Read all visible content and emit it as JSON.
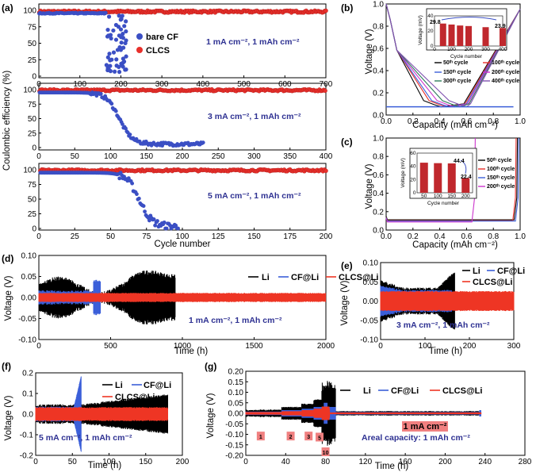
{
  "colors": {
    "bare": "#3b4fc4",
    "clcs": "#e8302b",
    "li": "#000000",
    "cf": "#3b5fd9",
    "clcsli": "#ee3524",
    "cycLine": [
      "#000000",
      "#e8302b",
      "#3b5fd9",
      "#cc33cc"
    ],
    "pink": "#f08080"
  },
  "panels": {
    "a": "(a)",
    "b": "(b)",
    "c": "(c)",
    "d": "(d)",
    "e": "(e)",
    "f": "(f)",
    "g": "(g)"
  },
  "a": {
    "ylabel": "Coulombic efficiency (%)",
    "xlabel": "Cycle number",
    "legend": {
      "bare": "bare CF",
      "clcs": "CLCS"
    },
    "sub": [
      {
        "cond": "1 mA cm⁻², 1 mAh cm⁻²",
        "xlim": [
          0,
          700
        ],
        "xticks": [
          "0",
          "100",
          "200",
          "300",
          "400",
          "500",
          "600",
          "700"
        ],
        "yticks": [
          "0",
          "25",
          "50",
          "75",
          "100"
        ],
        "bare": {
          "stableUntil": 165,
          "failStart": 165,
          "failEnd": 215
        },
        "clcs": {
          "value": 98,
          "end": 700
        }
      },
      {
        "cond": "3 mA cm⁻², 1 mAh cm⁻²",
        "xlim": [
          0,
          400
        ],
        "xticks": [
          "0",
          "50",
          "100",
          "150",
          "200",
          "250",
          "300",
          "350",
          "400"
        ],
        "yticks": [
          "0",
          "25",
          "50",
          "75",
          "100"
        ],
        "bare": {
          "stableUntil": 70,
          "midpoint": 112,
          "end": 230,
          "floor": 6
        },
        "clcs": {
          "value": 99,
          "end": 400
        }
      },
      {
        "cond": "5 mA cm⁻², 1 mAh cm⁻²",
        "xlim": [
          0,
          200
        ],
        "xticks": [
          "0",
          "25",
          "50",
          "75",
          "100",
          "125",
          "150",
          "175",
          "200"
        ],
        "yticks": [
          "0",
          "25",
          "50",
          "75",
          "100"
        ],
        "bare": {
          "stableUntil": 55,
          "midpoint": 70,
          "end": 97
        },
        "clcs": {
          "value": 99,
          "end": 200
        }
      }
    ]
  },
  "b": {
    "xlabel": "Capacity (mAh cm⁻²)",
    "ylabel": "Voltage (V)",
    "xticks": [
      "0.0",
      "0.2",
      "0.4",
      "0.6",
      "0.8",
      "1.0"
    ],
    "yticks": [
      "0.0",
      "0.2",
      "0.4",
      "0.6",
      "0.8",
      "1.0"
    ],
    "legend": [
      "50ᵗʰ cycle",
      "150ᵗʰ cycle",
      "300ᵗʰ cycle",
      "100ᵗʰ cycle",
      "200ᵗʰ cycle",
      "400ᵗʰ cycle"
    ],
    "inset": {
      "ylabel": "Voltage (mV)",
      "xlabel": "Cycle number",
      "xticks": [
        "0",
        "100",
        "200",
        "300",
        "400"
      ],
      "yticks": [
        "0",
        "20",
        "40"
      ],
      "categories": [
        50,
        100,
        150,
        200,
        300,
        400
      ],
      "values": [
        29.8,
        28.5,
        27.2,
        26.5,
        25.0,
        23.9
      ],
      "label_first": "29.8",
      "label_last": "23.9"
    }
  },
  "c": {
    "xlabel": "Capacity (mAh cm⁻²)",
    "ylabel": "Voltage (V)",
    "xticks": [
      "0.0",
      "0.2",
      "0.4",
      "0.6",
      "0.8",
      "1.0"
    ],
    "yticks": [
      "0.0",
      "0.2",
      "0.4",
      "0.6",
      "0.8",
      "1.0"
    ],
    "legend": [
      "50ᵗʰ cycle",
      "100ᵗʰ cycle",
      "150ᵗʰ cycle",
      "200ᵗʰ cycle"
    ],
    "inset": {
      "ylabel": "Voltage (mV)",
      "xlabel": "Cycle number",
      "categories": [
        "50",
        "100",
        "150",
        "200"
      ],
      "yticks": [
        "0",
        "20",
        "40",
        "60"
      ],
      "values": [
        45.5,
        44.8,
        44.4,
        22.4
      ],
      "label_a": "44.4",
      "label_b": "22.4"
    }
  },
  "d": {
    "xlabel": "Time (h)",
    "ylabel": "Voltage (V)",
    "cond": "1 mA cm⁻², 1 mAh cm⁻²",
    "xticks": [
      "0",
      "500",
      "1000",
      "1500",
      "2000"
    ],
    "yticks": [
      "-0.10",
      "-0.05",
      "0.00",
      "0.05",
      "0.10"
    ],
    "legend": [
      "Li",
      "CF@Li",
      "CLCS@Li"
    ]
  },
  "e": {
    "xlabel": "Time (h)",
    "ylabel": "Voltage (V)",
    "cond": "3 mA cm⁻², 1 mAh cm⁻²",
    "xticks": [
      "0",
      "100",
      "200",
      "300"
    ],
    "yticks": [
      "-0.10",
      "-0.05",
      "0.00",
      "0.05",
      "0.10"
    ],
    "legend": [
      "Li",
      "CF@Li",
      "CLCS@Li"
    ]
  },
  "f": {
    "xlabel": "Time (h)",
    "ylabel": "Voltage (V)",
    "cond": "5 mA cm⁻², 1 mAh cm⁻²",
    "xticks": [
      "0",
      "50",
      "100",
      "150",
      "200"
    ],
    "yticks": [
      "-0.2",
      "-0.1",
      "0.0",
      "0.1",
      "0.2"
    ],
    "legend": [
      "Li",
      "CF@Li",
      "CLCS@Li"
    ]
  },
  "g": {
    "xlabel": "Time (h)",
    "ylabel": "Voltage (V)",
    "xticks": [
      "0",
      "40",
      "80",
      "120",
      "160",
      "200",
      "240",
      "280"
    ],
    "yticks": [
      "-0.20",
      "-0.15",
      "-0.10",
      "-0.05",
      "0.00",
      "0.05",
      "0.10",
      "0.15",
      "0.20"
    ],
    "legend": [
      "Li",
      "CF@Li",
      "CLCS@Li"
    ],
    "steps": [
      "1",
      "2",
      "3",
      "5",
      "10"
    ],
    "tag": "1 mA cm⁻²",
    "areal": "Areal capacity: 1 mAh cm⁻²"
  }
}
